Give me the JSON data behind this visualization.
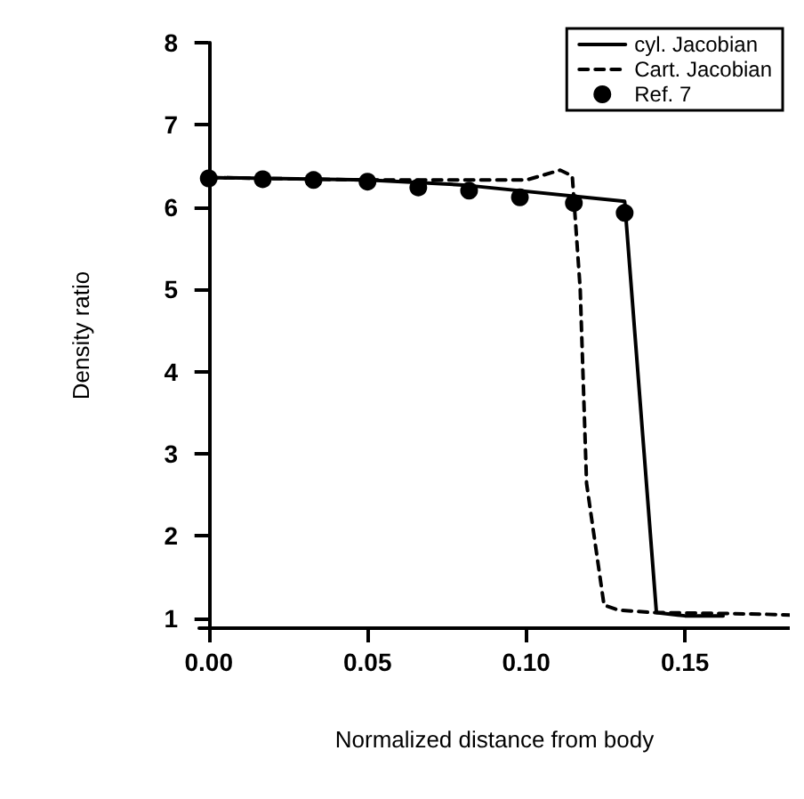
{
  "chart_data": {
    "type": "line",
    "xlabel": "Normalized distance from body",
    "ylabel": "Density ratio",
    "xlim": [
      -0.003,
      0.183
    ],
    "ylim": [
      0.88,
      8
    ],
    "xticks": [
      {
        "value": 0,
        "label": "0.00"
      },
      {
        "value": 0.05,
        "label": "0.05"
      },
      {
        "value": 0.1,
        "label": "0.10"
      },
      {
        "value": 0.15,
        "label": "0.15"
      }
    ],
    "yticks": [
      1,
      2,
      3,
      4,
      5,
      6,
      7,
      8
    ],
    "grid": false,
    "legend": "top right",
    "series": [
      {
        "name": "cyl. Jacobian",
        "color": "#000000",
        "line_style": "solid",
        "marker": "none",
        "x": [
          0,
          0.05,
          0.08,
          0.131,
          0.141,
          0.15,
          0.162
        ],
        "values": [
          6.36,
          6.33,
          6.27,
          6.07,
          1.07,
          1.03,
          1.03
        ]
      },
      {
        "name": "Cart. Jacobian",
        "color": "#000000",
        "line_style": "dashed",
        "marker": "none",
        "x": [
          0,
          0.05,
          0.1,
          0.1107,
          0.1145,
          0.117,
          0.119,
          0.1245,
          0.129,
          0.14,
          0.16,
          0.175,
          0.183
        ],
        "values": [
          6.36,
          6.33,
          6.33,
          6.45,
          6.38,
          5.0,
          2.64,
          1.16,
          1.1,
          1.07,
          1.06,
          1.05,
          1.04
        ]
      },
      {
        "name": "Ref. 7",
        "type": "scatter",
        "color": "#000000",
        "marker": "circle",
        "x": [
          0,
          0.017,
          0.033,
          0.05,
          0.066,
          0.082,
          0.098,
          0.115,
          0.131
        ],
        "values": [
          6.35,
          6.34,
          6.33,
          6.31,
          6.24,
          6.2,
          6.12,
          6.05,
          5.93
        ]
      }
    ]
  }
}
